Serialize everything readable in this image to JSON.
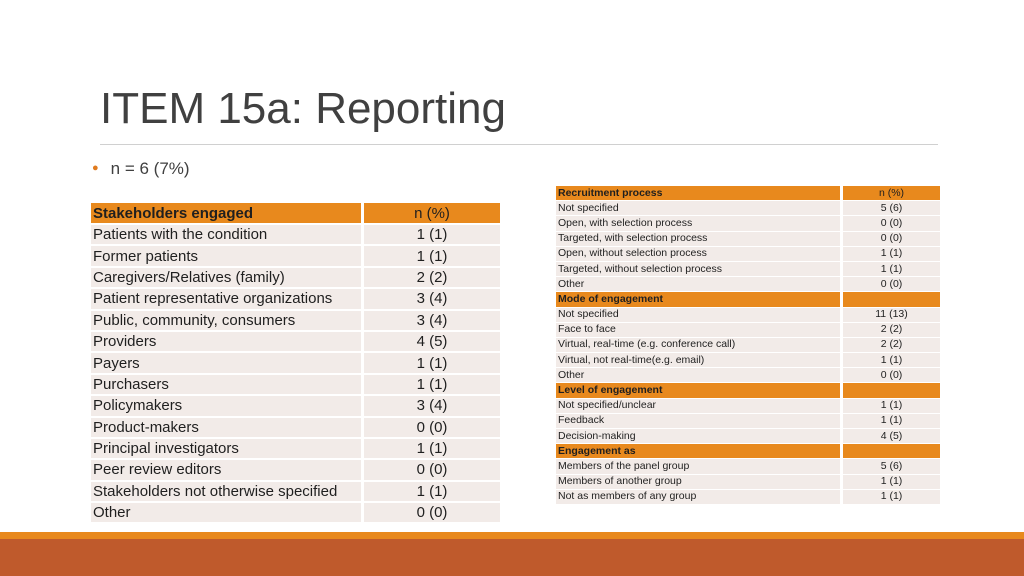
{
  "title": "ITEM 15a: Reporting",
  "bullet": "n = 6 (7%)",
  "colors": {
    "accent": "#e8891d",
    "row_bg": "#f2ebe8",
    "footer": "#bf5a2c"
  },
  "left_table": {
    "header": [
      "Stakeholders engaged",
      "n (%)"
    ],
    "rows": [
      [
        "Patients with the condition",
        "1 (1)"
      ],
      [
        "Former patients",
        "1 (1)"
      ],
      [
        "Caregivers/Relatives (family)",
        "2 (2)"
      ],
      [
        "Patient representative organizations",
        "3 (4)"
      ],
      [
        "Public, community, consumers",
        "3 (4)"
      ],
      [
        "Providers",
        "4 (5)"
      ],
      [
        "Payers",
        "1 (1)"
      ],
      [
        "Purchasers",
        "1 (1)"
      ],
      [
        "Policymakers",
        "3 (4)"
      ],
      [
        "Product-makers",
        "0 (0)"
      ],
      [
        "Principal investigators",
        "1 (1)"
      ],
      [
        "Peer review editors",
        "0 (0)"
      ],
      [
        "Stakeholders not otherwise specified",
        "1 (1)"
      ],
      [
        "Other",
        "0 (0)"
      ]
    ]
  },
  "right_table": {
    "rows": [
      {
        "type": "head",
        "label": "Recruitment process",
        "value": "n (%)"
      },
      {
        "type": "row",
        "label": "Not specified",
        "value": "5 (6)"
      },
      {
        "type": "row",
        "label": "Open, with selection process",
        "value": "0 (0)"
      },
      {
        "type": "row",
        "label": "Targeted, with selection process",
        "value": "0 (0)"
      },
      {
        "type": "row",
        "label": "Open, without selection process",
        "value": "1 (1)"
      },
      {
        "type": "row",
        "label": "Targeted, without selection process",
        "value": "1 (1)"
      },
      {
        "type": "row",
        "label": "Other",
        "value": "0 (0)"
      },
      {
        "type": "head",
        "label": "Mode of engagement",
        "value": ""
      },
      {
        "type": "row",
        "label": "Not specified",
        "value": "11 (13)"
      },
      {
        "type": "row",
        "label": "Face to face",
        "value": "2 (2)"
      },
      {
        "type": "row",
        "label": "Virtual, real-time (e.g. conference call)",
        "value": "2 (2)"
      },
      {
        "type": "row",
        "label": "Virtual, not real-time(e.g. email)",
        "value": "1 (1)"
      },
      {
        "type": "row",
        "label": "Other",
        "value": "0 (0)"
      },
      {
        "type": "head",
        "label": "Level of engagement",
        "value": ""
      },
      {
        "type": "row",
        "label": "Not specified/unclear",
        "value": "1 (1)"
      },
      {
        "type": "row",
        "label": "Feedback",
        "value": "1 (1)"
      },
      {
        "type": "row",
        "label": "Decision-making",
        "value": "4 (5)"
      },
      {
        "type": "head",
        "label": "Engagement as",
        "value": ""
      },
      {
        "type": "row",
        "label": "Members of the panel group",
        "value": "5 (6)"
      },
      {
        "type": "row",
        "label": "Members of another group",
        "value": "1 (1)"
      },
      {
        "type": "row",
        "label": "Not as members of any group",
        "value": "1 (1)"
      }
    ]
  }
}
